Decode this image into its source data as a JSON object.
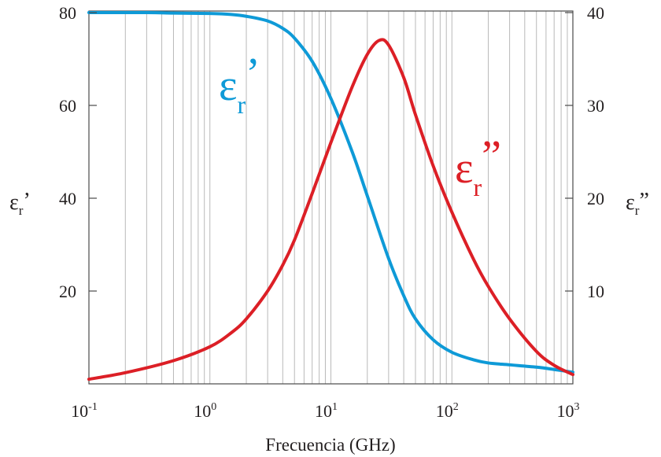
{
  "chart_data": {
    "type": "line",
    "xscale": "log",
    "xlim": [
      0.1,
      1000
    ],
    "xlabel": "Frecuencia (GHz)",
    "x_ticks": [
      {
        "value": 0.1,
        "base": "10",
        "exp": "-1"
      },
      {
        "value": 1,
        "base": "10",
        "exp": "0"
      },
      {
        "value": 10,
        "base": "10",
        "exp": "1"
      },
      {
        "value": 100,
        "base": "10",
        "exp": "2"
      },
      {
        "value": 1000,
        "base": "10",
        "exp": "3"
      }
    ],
    "y_left": {
      "label_main": "ε",
      "label_sub": "r",
      "label_prime": "’",
      "lim": [
        0,
        80
      ],
      "ticks": [
        "20",
        "40",
        "60",
        "80"
      ]
    },
    "y_right": {
      "label_main": "ε",
      "label_sub": "r",
      "label_prime": "”",
      "lim": [
        0,
        40
      ],
      "ticks": [
        "10",
        "20",
        "30",
        "40"
      ]
    },
    "grid": "vertical-log",
    "series": [
      {
        "name_main": "ε",
        "name_sub": "r",
        "name_prime": "’",
        "axis": "left",
        "color": "#0e9ad7",
        "x": [
          0.1,
          0.3,
          0.5,
          1,
          1.5,
          2,
          3,
          4,
          5,
          7,
          10,
          15,
          20,
          30,
          40,
          50,
          70,
          100,
          150,
          200,
          300,
          500,
          700,
          1000
        ],
        "y": [
          80,
          80,
          79.9,
          79.8,
          79.6,
          79.2,
          78.2,
          76.6,
          74.5,
          69.5,
          61.5,
          50,
          40.5,
          27,
          19,
          14,
          9.5,
          6.8,
          5.2,
          4.5,
          4.1,
          3.6,
          3.1,
          2.5
        ]
      },
      {
        "name_main": "ε",
        "name_sub": "r",
        "name_prime": "”",
        "axis": "right",
        "color": "#dc1f26",
        "x": [
          0.1,
          0.2,
          0.5,
          1,
          1.5,
          2,
          3,
          4,
          5,
          7,
          10,
          15,
          20,
          25,
          30,
          40,
          50,
          70,
          100,
          150,
          200,
          300,
          500,
          700,
          1000
        ],
        "y": [
          0.5,
          1.2,
          2.5,
          4,
          5.5,
          7,
          10,
          12.8,
          15.5,
          20.5,
          26,
          32,
          35.5,
          37,
          36.5,
          33,
          29,
          23.5,
          18.5,
          13.5,
          10.5,
          7,
          3.5,
          2,
          1
        ]
      }
    ]
  }
}
